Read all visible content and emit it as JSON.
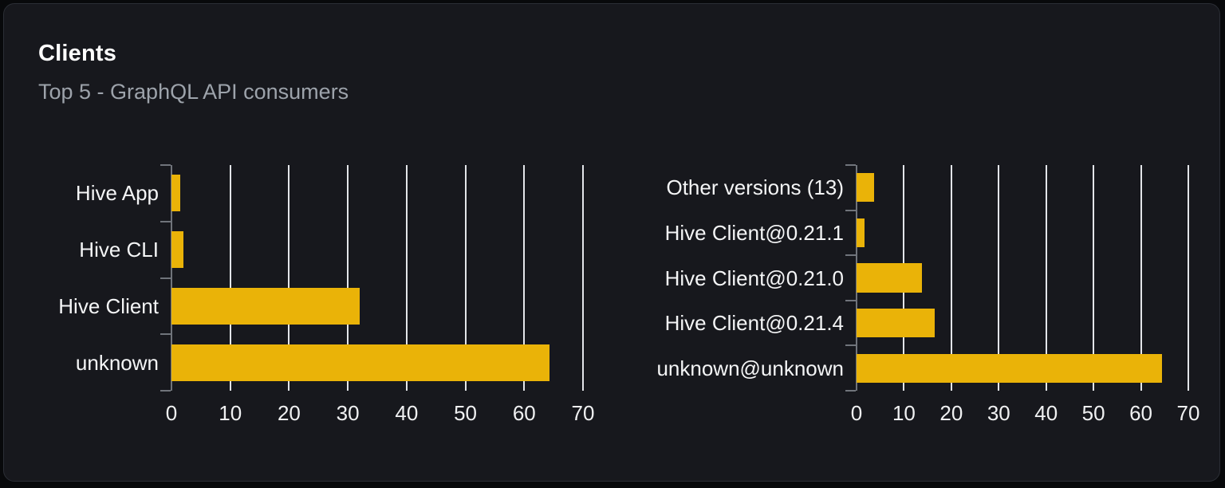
{
  "card": {
    "title": "Clients",
    "subtitle": "Top 5 - GraphQL API consumers"
  },
  "colors": {
    "page_bg": "#08090b",
    "card_bg": "#17181d",
    "bar": "#eab308",
    "grid": "#e3e5e9",
    "axis": "#70747b",
    "title": "#ffffff",
    "subtitle": "#9da3ab",
    "category_label": "#f4f5f6",
    "tick_label": "#f0f1f2"
  },
  "chart_data": [
    {
      "type": "bar",
      "orientation": "horizontal",
      "name": "clients-by-name",
      "title": "",
      "categories": [
        "Hive App",
        "Hive CLI",
        "Hive Client",
        "unknown"
      ],
      "values": [
        1.5,
        2,
        32,
        64.3
      ],
      "xlim": [
        0,
        70
      ],
      "xticks": [
        0,
        10,
        20,
        30,
        40,
        50,
        60,
        70
      ],
      "grid": true,
      "legend": "none"
    },
    {
      "type": "bar",
      "orientation": "horizontal",
      "name": "clients-by-version",
      "title": "",
      "categories": [
        "Other versions (13)",
        "Hive Client@0.21.1",
        "Hive Client@0.21.0",
        "Hive Client@0.21.4",
        "unknown@unknown"
      ],
      "values": [
        3.7,
        1.7,
        13.8,
        16.5,
        64.5
      ],
      "xlim": [
        0,
        70
      ],
      "xticks": [
        0,
        10,
        20,
        30,
        40,
        50,
        60,
        70
      ],
      "grid": true,
      "legend": "none"
    }
  ]
}
